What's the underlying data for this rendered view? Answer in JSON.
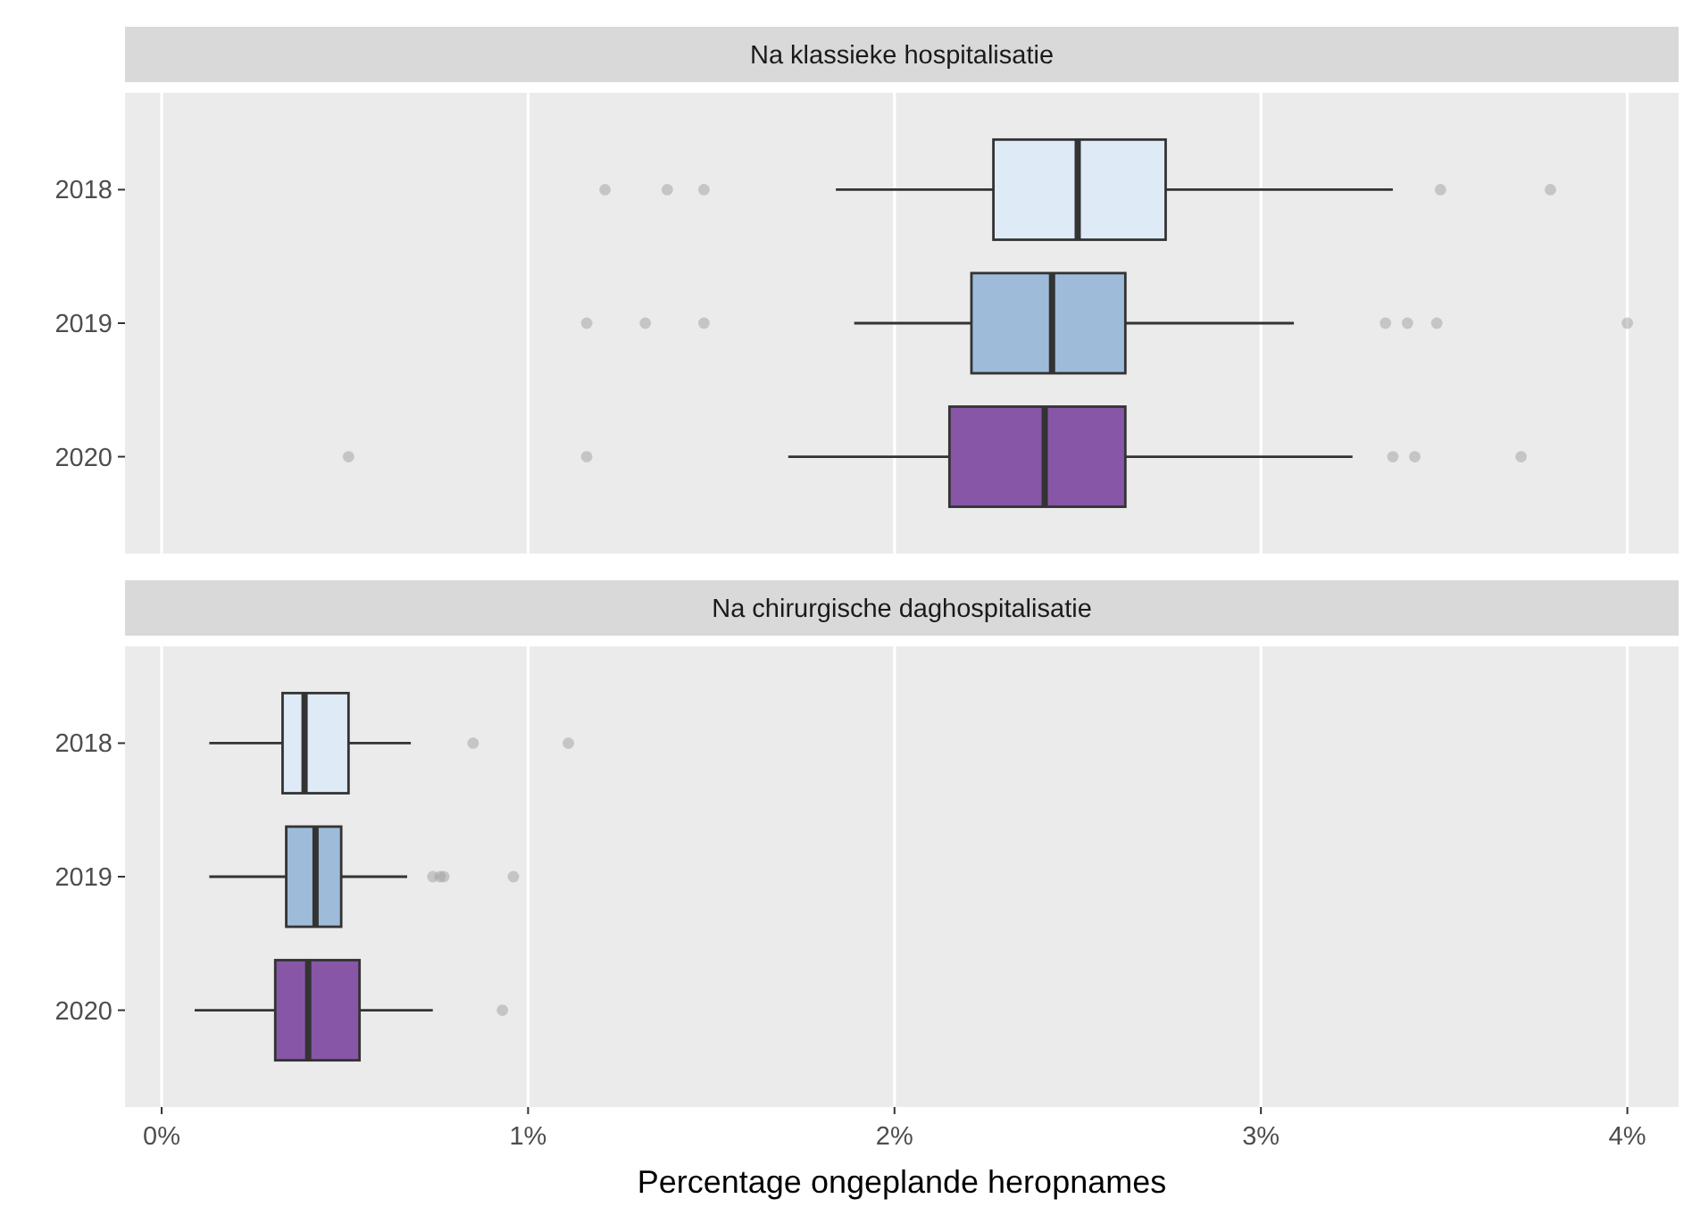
{
  "chart_data": [
    {
      "type": "box",
      "title": "Na klassieke hospitalisatie",
      "orientation": "horizontal",
      "categories": [
        "2018",
        "2019",
        "2020"
      ],
      "colors": [
        "#deebf7",
        "#9ebcda",
        "#8856a7"
      ],
      "boxes": [
        {
          "low": 1.84,
          "q1": 2.27,
          "median": 2.5,
          "q3": 2.74,
          "high": 3.36,
          "outliers": [
            1.21,
            1.38,
            1.48,
            3.49,
            3.79
          ]
        },
        {
          "low": 1.89,
          "q1": 2.21,
          "median": 2.43,
          "q3": 2.63,
          "high": 3.09,
          "outliers": [
            1.16,
            1.32,
            1.48,
            3.34,
            3.4,
            3.48,
            4.0
          ]
        },
        {
          "low": 1.71,
          "q1": 2.15,
          "median": 2.41,
          "q3": 2.63,
          "high": 3.25,
          "outliers": [
            0.51,
            1.16,
            3.36,
            3.42,
            3.71
          ]
        }
      ],
      "xlim": [
        -0.1,
        4.14
      ],
      "xticks": [
        {
          "value": 0,
          "label": null
        },
        {
          "value": 1,
          "label": null
        },
        {
          "value": 2,
          "label": null
        },
        {
          "value": 3,
          "label": null
        },
        {
          "value": 4,
          "label": null
        }
      ],
      "grid": "x",
      "tick_labels": "y"
    },
    {
      "type": "box",
      "title": "Na chirurgische daghospitalisatie",
      "orientation": "horizontal",
      "categories": [
        "2018",
        "2019",
        "2020"
      ],
      "colors": [
        "#deebf7",
        "#9ebcda",
        "#8856a7"
      ],
      "boxes": [
        {
          "low": 0.13,
          "q1": 0.33,
          "median": 0.39,
          "q3": 0.51,
          "high": 0.68,
          "outliers": [
            0.85,
            1.11
          ]
        },
        {
          "low": 0.13,
          "q1": 0.34,
          "median": 0.42,
          "q3": 0.49,
          "high": 0.67,
          "outliers": [
            0.74,
            0.76,
            0.77,
            0.96
          ]
        },
        {
          "low": 0.09,
          "q1": 0.31,
          "median": 0.4,
          "q3": 0.54,
          "high": 0.74,
          "outliers": [
            0.93
          ]
        }
      ],
      "xlim": [
        -0.1,
        4.14
      ],
      "xticks": [
        {
          "value": 0,
          "label": "0%"
        },
        {
          "value": 1,
          "label": "1%"
        },
        {
          "value": 2,
          "label": "2%"
        },
        {
          "value": 3,
          "label": "3%"
        },
        {
          "value": 4,
          "label": "4%"
        }
      ],
      "grid": "x",
      "xlabel": "Percentage ongeplande heropnames"
    }
  ]
}
